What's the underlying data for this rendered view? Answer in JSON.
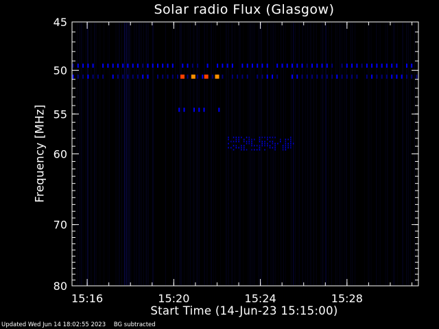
{
  "chart_data": {
    "type": "heatmap",
    "title": "Solar radio Flux (Glasgow)",
    "xlabel": "Start Time (14-Jun-23 15:15:00)",
    "ylabel": "Frequency [MHz]",
    "x_unit": "minutes after 15:15:00",
    "xlim": [
      0.3,
      16.3
    ],
    "ylim": [
      45,
      80
    ],
    "y_scale": "log",
    "x_ticks": [
      {
        "value": 1,
        "label": "15:16"
      },
      {
        "value": 5,
        "label": "15:20"
      },
      {
        "value": 9,
        "label": "15:24"
      },
      {
        "value": 13,
        "label": "15:28"
      }
    ],
    "y_ticks": [
      {
        "value": 45,
        "label": "45"
      },
      {
        "value": 50,
        "label": "50"
      },
      {
        "value": 55,
        "label": "55"
      },
      {
        "value": 60,
        "label": "60"
      },
      {
        "value": 70,
        "label": "70"
      },
      {
        "value": 80,
        "label": "80"
      }
    ],
    "background_color": "#000000",
    "colorscale": [
      "#000000",
      "#000080",
      "#0000ff",
      "#ff4000",
      "#ff9000"
    ],
    "features": [
      {
        "kind": "dotted_band",
        "freq": 49.5,
        "x_start": 0.3,
        "x_end": 16.3,
        "intensity": 0.55
      },
      {
        "kind": "dotted_band",
        "freq": 50.7,
        "x_start": 0.3,
        "x_end": 16.3,
        "intensity": 0.4
      },
      {
        "kind": "burst",
        "freq": 50.7,
        "x": 5.4,
        "intensity": 0.9
      },
      {
        "kind": "burst",
        "freq": 50.7,
        "x": 5.9,
        "intensity": 1.0
      },
      {
        "kind": "burst",
        "freq": 50.7,
        "x": 6.5,
        "intensity": 0.9
      },
      {
        "kind": "burst",
        "freq": 50.7,
        "x": 7.0,
        "intensity": 1.0
      },
      {
        "kind": "dotted_band",
        "freq": 54.5,
        "x_start": 5.2,
        "x_end": 7.1,
        "intensity": 0.5
      },
      {
        "kind": "patch",
        "freq_min": 57.8,
        "freq_max": 59.4,
        "x_start": 7.5,
        "x_end": 10.6,
        "intensity": 0.6
      }
    ]
  },
  "footer": {
    "updated": "Updated Wed Jun 14 18:02:55 2023",
    "note": "BG subtracted"
  }
}
